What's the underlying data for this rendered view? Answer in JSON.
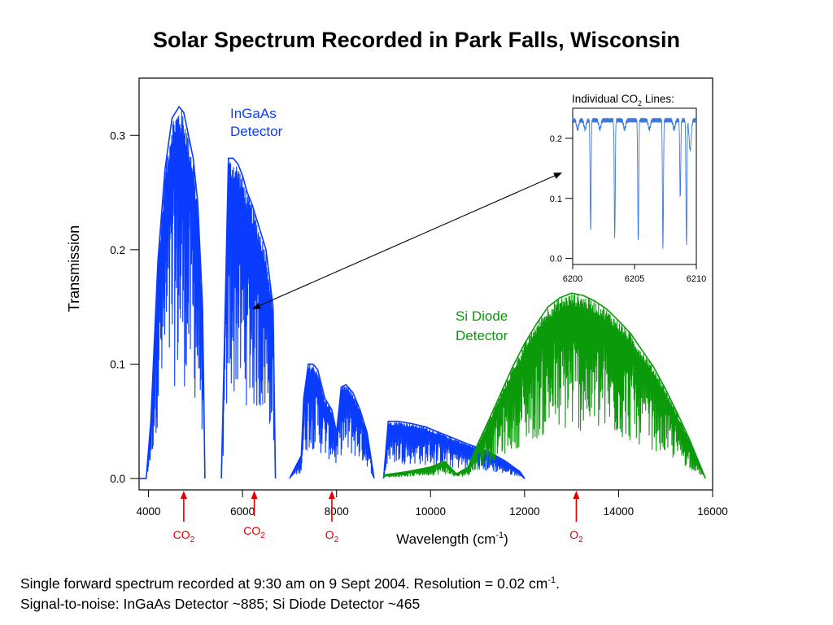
{
  "slide": {
    "title": "Solar Spectrum Recorded in Park Falls, Wisconsin",
    "caption_line1": "Single forward spectrum recorded at 9:30 am on 9 Sept 2004.  Resolution = 0.02 cm",
    "caption_line1_sup": "-1",
    "caption_line1_end": ".",
    "caption_line2": "Signal-to-noise: InGaAs Detector ~885; Si Diode Detector ~465"
  },
  "colors": {
    "ingaas": "#0a3cff",
    "si": "#0a9a0a",
    "marker": "#e00000",
    "inset_line": "#3a78e0"
  },
  "chart_data": [
    {
      "type": "line",
      "title": "Solar Spectrum Recorded in Park Falls, Wisconsin",
      "xlabel": "Wavelength (cm-1)",
      "xlabel_main": "Wavelength (cm",
      "xlabel_sup": "-1",
      "xlabel_end": ")",
      "ylabel": "Transmission",
      "xlim": [
        3800,
        16000
      ],
      "ylim": [
        -0.01,
        0.35
      ],
      "xticks": [
        4000,
        6000,
        8000,
        10000,
        12000,
        14000,
        16000
      ],
      "yticks": [
        0.0,
        0.1,
        0.2,
        0.3
      ],
      "ytick_labels": [
        "0.0",
        "0.1",
        "0.2",
        "0.3"
      ],
      "series": [
        {
          "name": "InGaAs Detector",
          "label_line1": "InGaAs",
          "label_line2": "Detector",
          "color": "#0a3cff",
          "segments": [
            {
              "x": [
                3800,
                3950,
                4050,
                4200,
                4350,
                4500,
                4650,
                4750,
                4850,
                4950,
                5050,
                5150,
                5200
              ],
              "y": [
                0,
                0,
                0.05,
                0.19,
                0.27,
                0.315,
                0.325,
                0.32,
                0.3,
                0.28,
                0.24,
                0.15,
                0
              ]
            },
            {
              "x": [
                5550,
                5600,
                5700,
                5800,
                5900,
                6000,
                6100,
                6200,
                6350,
                6500,
                6650,
                6700
              ],
              "y": [
                0,
                0.09,
                0.28,
                0.28,
                0.275,
                0.265,
                0.25,
                0.24,
                0.22,
                0.2,
                0.15,
                0
              ]
            },
            {
              "x": [
                7000,
                7250,
                7300,
                7400,
                7500,
                7600,
                7750,
                7900,
                8000,
                8100,
                8200,
                8350,
                8500,
                8650,
                8800
              ],
              "y": [
                0,
                0.02,
                0.07,
                0.1,
                0.1,
                0.095,
                0.07,
                0.06,
                0.04,
                0.08,
                0.082,
                0.075,
                0.06,
                0.04,
                0.0
              ]
            },
            {
              "x": [
                9000,
                9100,
                9300,
                9600,
                9900,
                10200,
                10500,
                10800,
                11000,
                11300,
                11600,
                11900,
                12000
              ],
              "y": [
                0,
                0.05,
                0.05,
                0.048,
                0.045,
                0.04,
                0.035,
                0.03,
                0.027,
                0.022,
                0.015,
                0.006,
                0.0
              ]
            }
          ]
        },
        {
          "name": "Si Diode Detector",
          "label_line1": "Si Diode",
          "label_line2": "Detector",
          "color": "#0a9a0a",
          "segments": [
            {
              "x": [
                9000,
                9500,
                10000,
                10300,
                10550,
                10800,
                11000
              ],
              "y": [
                0.003,
                0.006,
                0.01,
                0.015,
                0.004,
                0.01,
                0.03
              ]
            },
            {
              "x": [
                11000,
                11250,
                11500,
                11750,
                12000,
                12250,
                12500,
                12750,
                13000,
                13250,
                13500,
                13750,
                14000,
                14250,
                14500,
                14750,
                15000,
                15250,
                15500,
                15750,
                15850
              ],
              "y": [
                0.03,
                0.052,
                0.075,
                0.098,
                0.118,
                0.135,
                0.15,
                0.158,
                0.162,
                0.16,
                0.155,
                0.148,
                0.138,
                0.127,
                0.112,
                0.097,
                0.078,
                0.057,
                0.035,
                0.01,
                0.0
              ]
            }
          ]
        }
      ],
      "markers": [
        {
          "x": 4750,
          "label": "CO",
          "sub": "2",
          "level": 0
        },
        {
          "x": 6250,
          "label": "CO",
          "sub": "2",
          "level": 1
        },
        {
          "x": 7900,
          "label": "O",
          "sub": "2",
          "level": 0
        },
        {
          "x": 13100,
          "label": "O",
          "sub": "2",
          "level": 0
        }
      ],
      "zoom_source": {
        "x": 6205,
        "y": 0.148
      }
    },
    {
      "type": "line",
      "title": "Individual CO2 Lines:",
      "title_main": "Individual CO",
      "title_sub": "2",
      "title_end": " Lines:",
      "xlim": [
        6200,
        6210
      ],
      "ylim": [
        -0.01,
        0.25
      ],
      "xticks": [
        6200,
        6205,
        6210
      ],
      "yticks": [
        0.0,
        0.1,
        0.2
      ],
      "ytick_labels": [
        "0.0",
        "0.1",
        "0.2"
      ],
      "baseline": 0.23,
      "absorption_lines": [
        {
          "x": 6200.4,
          "depth": 0.015
        },
        {
          "x": 6201.0,
          "depth": 0.015
        },
        {
          "x": 6201.45,
          "depth": 0.185
        },
        {
          "x": 6202.2,
          "depth": 0.015
        },
        {
          "x": 6203.4,
          "depth": 0.2
        },
        {
          "x": 6204.2,
          "depth": 0.015
        },
        {
          "x": 6205.3,
          "depth": 0.2
        },
        {
          "x": 6206.2,
          "depth": 0.015
        },
        {
          "x": 6207.3,
          "depth": 0.215
        },
        {
          "x": 6208.2,
          "depth": 0.015
        },
        {
          "x": 6208.7,
          "depth": 0.13
        },
        {
          "x": 6209.2,
          "depth": 0.21
        },
        {
          "x": 6209.5,
          "depth": 0.05
        }
      ]
    }
  ]
}
